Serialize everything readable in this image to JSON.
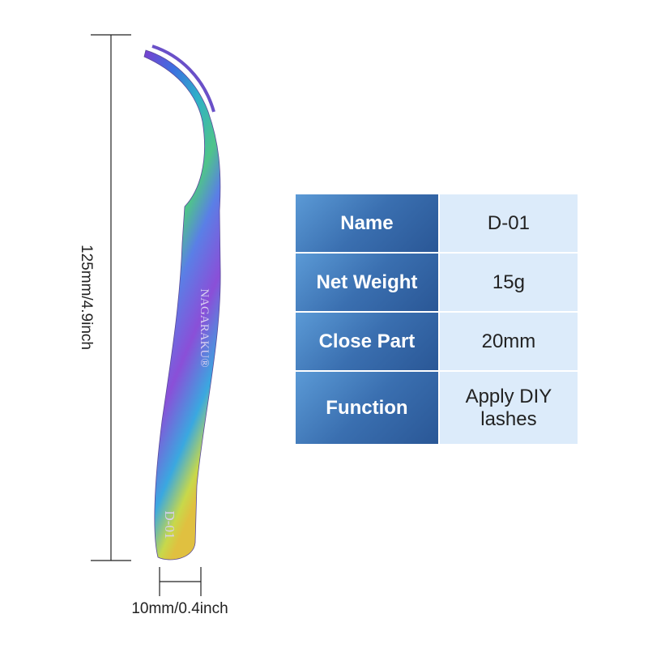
{
  "dimensions": {
    "height": "125mm/4.9inch",
    "width": "10mm/0.4inch"
  },
  "product": {
    "brand": "NAGARAKU®",
    "model": "D-01"
  },
  "table": {
    "rows": [
      [
        "Name",
        "D-01"
      ],
      [
        "Net Weight",
        "15g"
      ],
      [
        "Close Part",
        "20mm"
      ],
      [
        "Function",
        "Apply DIY lashes"
      ]
    ]
  }
}
